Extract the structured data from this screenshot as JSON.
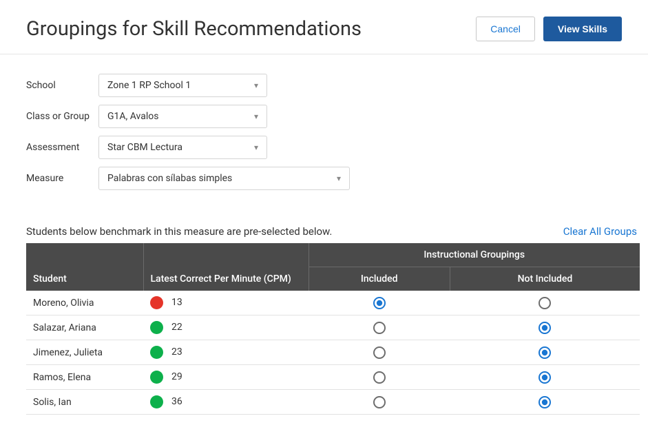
{
  "header": {
    "title": "Groupings for Skill Recommendations",
    "cancel_label": "Cancel",
    "view_skills_label": "View Skills"
  },
  "filters": {
    "school": {
      "label": "School",
      "value": "Zone 1 RP School 1"
    },
    "class_group": {
      "label": "Class or Group",
      "value": "G1A, Avalos"
    },
    "assessment": {
      "label": "Assessment",
      "value": "Star CBM Lectura"
    },
    "measure": {
      "label": "Measure",
      "value": "Palabras con sílabas simples"
    }
  },
  "subheader": {
    "text": "Students below benchmark in this measure are pre-selected below.",
    "clear_label": "Clear All Groups"
  },
  "table": {
    "col_student": "Student",
    "col_cpm": "Latest Correct Per Minute (CPM)",
    "col_group_head": "Instructional Groupings",
    "col_included": "Included",
    "col_not_included": "Not Included"
  },
  "colors": {
    "red": "#e53429",
    "green": "#0db04b",
    "radio_selected": "#1976d2",
    "radio_unselected": "#6d6d6d"
  },
  "students": [
    {
      "name": "Moreno, Olivia",
      "cpm": "13",
      "status_color": "#e53429",
      "selected": "included"
    },
    {
      "name": "Salazar, Ariana",
      "cpm": "22",
      "status_color": "#0db04b",
      "selected": "not_included"
    },
    {
      "name": "Jimenez, Julieta",
      "cpm": "23",
      "status_color": "#0db04b",
      "selected": "not_included"
    },
    {
      "name": "Ramos, Elena",
      "cpm": "29",
      "status_color": "#0db04b",
      "selected": "not_included"
    },
    {
      "name": "Solis, Ian",
      "cpm": "36",
      "status_color": "#0db04b",
      "selected": "not_included"
    }
  ]
}
